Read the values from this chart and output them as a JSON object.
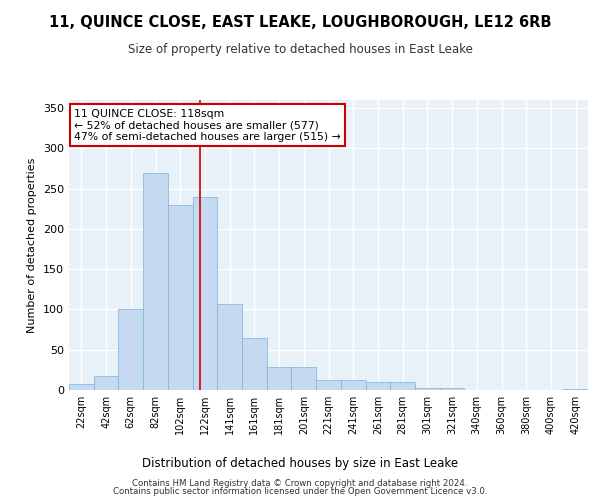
{
  "title": "11, QUINCE CLOSE, EAST LEAKE, LOUGHBOROUGH, LE12 6RB",
  "subtitle": "Size of property relative to detached houses in East Leake",
  "xlabel": "Distribution of detached houses by size in East Leake",
  "ylabel": "Number of detached properties",
  "bar_color": "#c5d9f0",
  "bar_edge_color": "#7ab4d8",
  "background_color": "#e8f0f8",
  "grid_color": "#ffffff",
  "bin_labels": [
    "22sqm",
    "42sqm",
    "62sqm",
    "82sqm",
    "102sqm",
    "122sqm",
    "141sqm",
    "161sqm",
    "181sqm",
    "201sqm",
    "221sqm",
    "241sqm",
    "261sqm",
    "281sqm",
    "301sqm",
    "321sqm",
    "340sqm",
    "360sqm",
    "380sqm",
    "400sqm",
    "420sqm"
  ],
  "bar_heights": [
    7,
    18,
    100,
    270,
    230,
    240,
    107,
    65,
    29,
    29,
    13,
    13,
    10,
    10,
    3,
    3,
    0,
    0,
    0,
    0,
    1
  ],
  "ylim": [
    0,
    360
  ],
  "yticks": [
    0,
    50,
    100,
    150,
    200,
    250,
    300,
    350
  ],
  "property_line_x": 4.8,
  "annotation_text": "11 QUINCE CLOSE: 118sqm\n← 52% of detached houses are smaller (577)\n47% of semi-detached houses are larger (515) →",
  "annotation_box_color": "#ffffff",
  "annotation_box_edge_color": "#cc0000",
  "footer_line1": "Contains HM Land Registry data © Crown copyright and database right 2024.",
  "footer_line2": "Contains public sector information licensed under the Open Government Licence v3.0."
}
